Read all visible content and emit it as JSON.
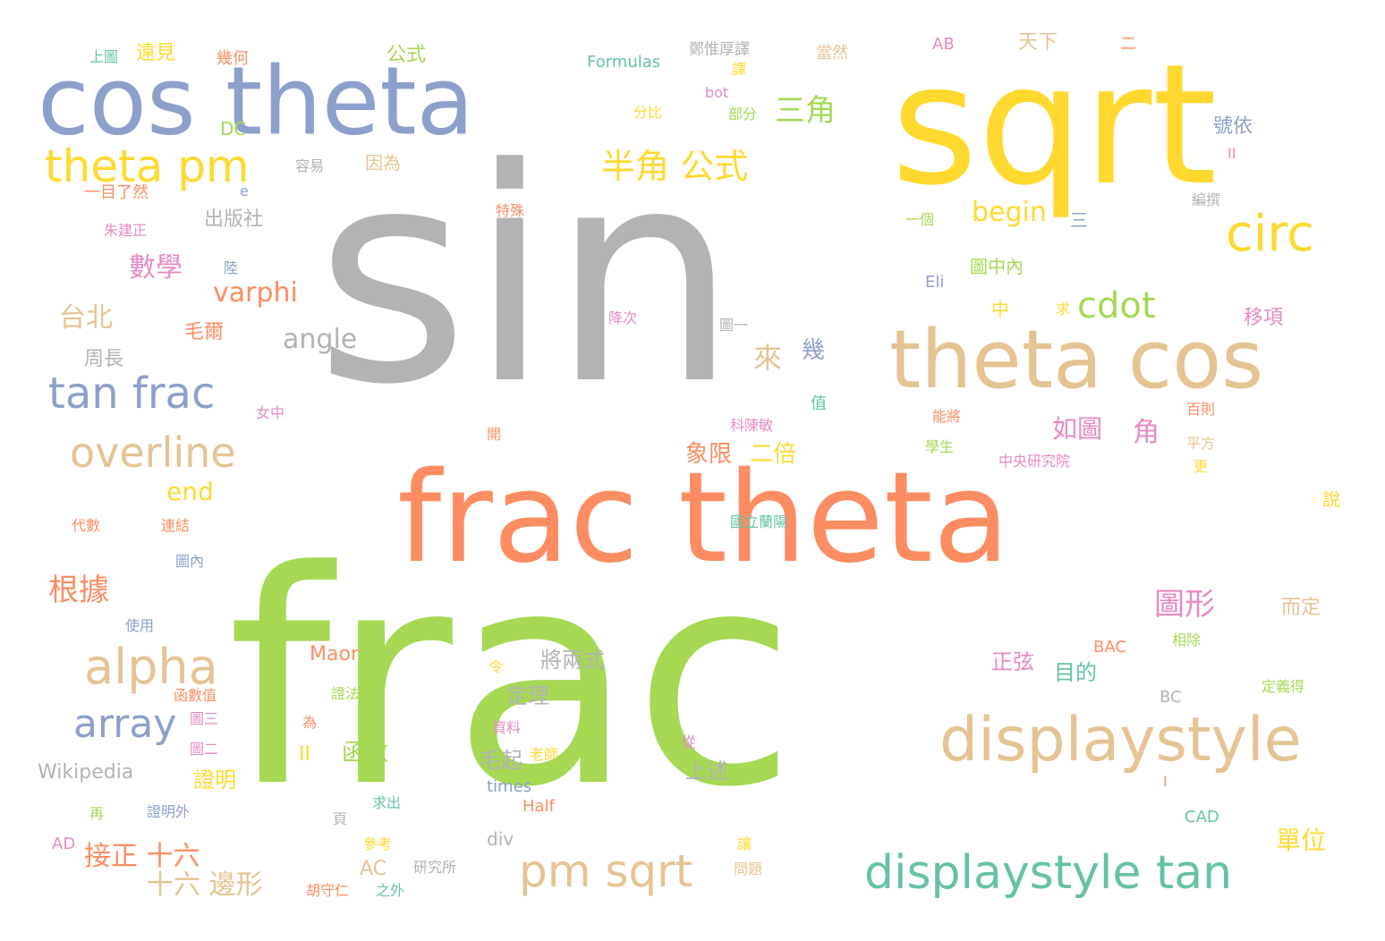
{
  "colors": {
    "gray": "#b3b3b3",
    "green": "#a6d854",
    "orange": "#fc8d62",
    "yellow": "#ffd92f",
    "blue": "#8da0cb",
    "tan": "#e5c494",
    "teal": "#66c2a5",
    "pink": "#e78ac3"
  },
  "words": [
    {
      "text": "sin",
      "color": "gray"
    },
    {
      "text": "frac",
      "color": "green"
    },
    {
      "text": "sqrt",
      "color": "yellow"
    },
    {
      "text": "frac theta",
      "color": "orange"
    },
    {
      "text": "cos theta",
      "color": "blue"
    },
    {
      "text": "theta cos",
      "color": "tan"
    },
    {
      "text": "displaystyle",
      "color": "tan"
    },
    {
      "text": "displaystyle tan",
      "color": "teal"
    },
    {
      "text": "theta pm",
      "color": "yellow"
    },
    {
      "text": "tan frac",
      "color": "blue"
    },
    {
      "text": "overline",
      "color": "tan"
    },
    {
      "text": "alpha",
      "color": "tan"
    },
    {
      "text": "array",
      "color": "blue"
    },
    {
      "text": "pm sqrt",
      "color": "tan"
    },
    {
      "text": "circ",
      "color": "yellow"
    },
    {
      "text": "cdot",
      "color": "green"
    },
    {
      "text": "半角 公式",
      "color": "yellow"
    },
    {
      "text": "三角",
      "color": "green"
    },
    {
      "text": "begin",
      "color": "yellow"
    },
    {
      "text": "varphi",
      "color": "orange"
    },
    {
      "text": "angle",
      "color": "gray"
    },
    {
      "text": "end",
      "color": "yellow"
    },
    {
      "text": "數學",
      "color": "pink"
    },
    {
      "text": "台北",
      "color": "tan"
    },
    {
      "text": "根據",
      "color": "orange"
    },
    {
      "text": "圖形",
      "color": "pink"
    },
    {
      "text": "如圖",
      "color": "pink"
    },
    {
      "text": "角",
      "color": "pink"
    },
    {
      "text": "來",
      "color": "tan"
    },
    {
      "text": "幾",
      "color": "blue"
    },
    {
      "text": "象限",
      "color": "orange"
    },
    {
      "text": "二倍",
      "color": "yellow"
    },
    {
      "text": "接正 十六",
      "color": "orange"
    },
    {
      "text": "十六 邊形",
      "color": "tan"
    },
    {
      "text": "單位",
      "color": "yellow"
    },
    {
      "text": "正弦",
      "color": "pink"
    },
    {
      "text": "目的",
      "color": "teal"
    },
    {
      "text": "將兩式",
      "color": "gray"
    },
    {
      "text": "定理",
      "color": "gray"
    },
    {
      "text": "函數",
      "color": "green"
    },
    {
      "text": "毛起",
      "color": "gray"
    },
    {
      "text": "上述",
      "color": "gray"
    },
    {
      "text": "證明",
      "color": "yellow"
    },
    {
      "text": "Maor",
      "color": "orange"
    },
    {
      "text": "Wikipedia",
      "color": "gray"
    },
    {
      "text": "AC",
      "color": "tan"
    },
    {
      "text": "div",
      "color": "gray"
    },
    {
      "text": "公式",
      "color": "green"
    },
    {
      "text": "遠見",
      "color": "yellow"
    },
    {
      "text": "天下",
      "color": "tan"
    },
    {
      "text": "出版社",
      "color": "gray"
    },
    {
      "text": "周長",
      "color": "gray"
    },
    {
      "text": "毛爾",
      "color": "orange"
    },
    {
      "text": "移項",
      "color": "pink"
    },
    {
      "text": "圖中內",
      "color": "green"
    },
    {
      "text": "號依",
      "color": "blue"
    },
    {
      "text": "因為",
      "color": "tan"
    },
    {
      "text": "而定",
      "color": "tan"
    },
    {
      "text": "Formulas",
      "color": "teal"
    },
    {
      "text": "鄭惟厚譯",
      "color": "gray"
    },
    {
      "text": "當然",
      "color": "tan"
    },
    {
      "text": "AB",
      "color": "pink"
    },
    {
      "text": "二",
      "color": "orange"
    },
    {
      "text": "上圖",
      "color": "teal"
    },
    {
      "text": "幾何",
      "color": "orange"
    },
    {
      "text": "DC",
      "color": "green"
    },
    {
      "text": "一目了然",
      "color": "orange"
    },
    {
      "text": "容易",
      "color": "gray"
    },
    {
      "text": "朱建正",
      "color": "pink"
    },
    {
      "text": "特殊",
      "color": "orange"
    },
    {
      "text": "一個",
      "color": "green"
    },
    {
      "text": "三",
      "color": "blue"
    },
    {
      "text": "Eli",
      "color": "blue"
    },
    {
      "text": "中",
      "color": "yellow"
    },
    {
      "text": "求",
      "color": "yellow"
    },
    {
      "text": "降次",
      "color": "pink"
    },
    {
      "text": "圖一",
      "color": "gray"
    },
    {
      "text": "科陳敏",
      "color": "pink"
    },
    {
      "text": "女中",
      "color": "pink"
    },
    {
      "text": "值",
      "color": "teal"
    },
    {
      "text": "能將",
      "color": "orange"
    },
    {
      "text": "百則",
      "color": "orange"
    },
    {
      "text": "學生",
      "color": "green"
    },
    {
      "text": "中央研究院",
      "color": "pink"
    },
    {
      "text": "平方",
      "color": "tan"
    },
    {
      "text": "更",
      "color": "yellow"
    },
    {
      "text": "說",
      "color": "yellow"
    },
    {
      "text": "代數",
      "color": "orange"
    },
    {
      "text": "連結",
      "color": "orange"
    },
    {
      "text": "國立蘭陽",
      "color": "teal"
    },
    {
      "text": "圖內",
      "color": "blue"
    },
    {
      "text": "使用",
      "color": "blue"
    },
    {
      "text": "BAC",
      "color": "orange"
    },
    {
      "text": "相除",
      "color": "green"
    },
    {
      "text": "函數值",
      "color": "orange"
    },
    {
      "text": "令",
      "color": "yellow"
    },
    {
      "text": "證法",
      "color": "green"
    },
    {
      "text": "定義得",
      "color": "green"
    },
    {
      "text": "BC",
      "color": "gray"
    },
    {
      "text": "圖三",
      "color": "pink"
    },
    {
      "text": "為",
      "color": "orange"
    },
    {
      "text": "資料",
      "color": "pink"
    },
    {
      "text": "從",
      "color": "pink"
    },
    {
      "text": "老師",
      "color": "yellow"
    },
    {
      "text": "圖二",
      "color": "pink"
    },
    {
      "text": "times",
      "color": "blue"
    },
    {
      "text": "Half",
      "color": "orange"
    },
    {
      "text": "再",
      "color": "green"
    },
    {
      "text": "證明外",
      "color": "blue"
    },
    {
      "text": "求出",
      "color": "teal"
    },
    {
      "text": "頁",
      "color": "gray"
    },
    {
      "text": "CAD",
      "color": "teal"
    },
    {
      "text": "AD",
      "color": "pink"
    },
    {
      "text": "參考",
      "color": "yellow"
    },
    {
      "text": "研究所",
      "color": "gray"
    },
    {
      "text": "胡守仁",
      "color": "orange"
    },
    {
      "text": "之外",
      "color": "teal"
    },
    {
      "text": "讓",
      "color": "yellow"
    },
    {
      "text": "問題",
      "color": "tan"
    },
    {
      "text": "分比",
      "color": "yellow"
    },
    {
      "text": "bot",
      "color": "pink"
    },
    {
      "text": "部分",
      "color": "green"
    },
    {
      "text": "譯",
      "color": "yellow"
    },
    {
      "text": "e",
      "color": "blue"
    },
    {
      "text": "陸",
      "color": "blue"
    },
    {
      "text": "開",
      "color": "orange"
    },
    {
      "text": "編撰",
      "color": "gray"
    },
    {
      "text": "II",
      "color": "pink"
    },
    {
      "text": "II",
      "color": "yellow"
    },
    {
      "text": "I",
      "color": "orange"
    }
  ]
}
